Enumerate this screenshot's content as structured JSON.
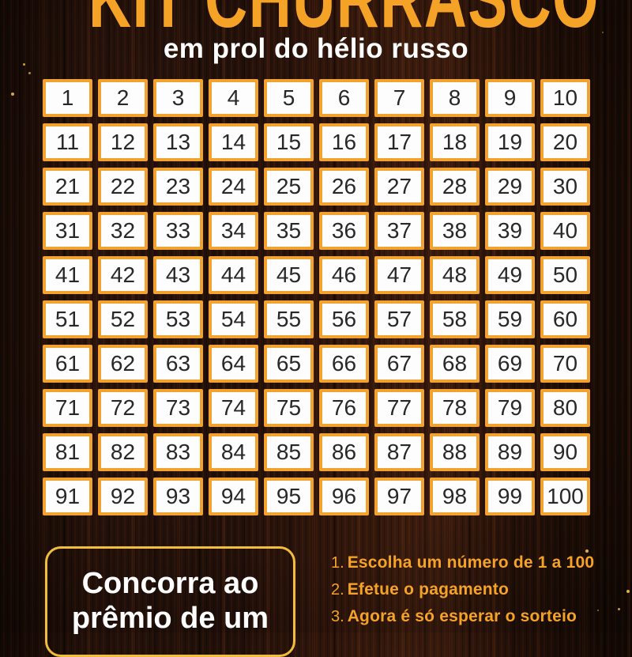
{
  "poster": {
    "title": "KIT CHURRASCO",
    "subtitle": "em prol do hélio russo"
  },
  "grid": {
    "numbers": [
      1,
      2,
      3,
      4,
      5,
      6,
      7,
      8,
      9,
      10,
      11,
      12,
      13,
      14,
      15,
      16,
      17,
      18,
      19,
      20,
      21,
      22,
      23,
      24,
      25,
      26,
      27,
      28,
      29,
      30,
      31,
      32,
      33,
      34,
      35,
      36,
      37,
      38,
      39,
      40,
      41,
      42,
      43,
      44,
      45,
      46,
      47,
      48,
      49,
      50,
      51,
      52,
      53,
      54,
      55,
      56,
      57,
      58,
      59,
      60,
      61,
      62,
      63,
      64,
      65,
      66,
      67,
      68,
      69,
      70,
      71,
      72,
      73,
      74,
      75,
      76,
      77,
      78,
      79,
      80,
      81,
      82,
      83,
      84,
      85,
      86,
      87,
      88,
      89,
      90,
      91,
      92,
      93,
      94,
      95,
      96,
      97,
      98,
      99,
      100
    ]
  },
  "prize_box": {
    "text": "Concorra ao prêmio de um"
  },
  "instructions": {
    "items": [
      {
        "number": "1.",
        "text": "Escolha um número de 1 a 100"
      },
      {
        "number": "2.",
        "text": "Efetue o pagamento"
      },
      {
        "number": "3.",
        "text": "Agora é só esperar o sorteio"
      }
    ]
  },
  "colors": {
    "accent_orange": "#F5A326",
    "cell_border": "#F2A22E",
    "box_border": "#F0BE3C",
    "background_wood": "#21100a",
    "number_text": "#282828",
    "white_text": "#FFFFFF"
  }
}
